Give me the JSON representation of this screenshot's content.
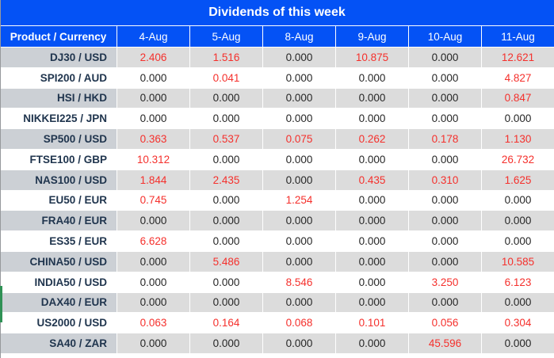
{
  "chart_data": {
    "type": "table",
    "title": "Dividends of this week",
    "columns": [
      "Product / Currency",
      "4-Aug",
      "5-Aug",
      "8-Aug",
      "9-Aug",
      "10-Aug",
      "11-Aug"
    ],
    "rows": [
      {
        "product": "DJ30 / USD",
        "values": [
          "2.406",
          "1.516",
          "0.000",
          "10.875",
          "0.000",
          "12.621"
        ]
      },
      {
        "product": "SPI200 / AUD",
        "values": [
          "0.000",
          "0.041",
          "0.000",
          "0.000",
          "0.000",
          "4.827"
        ]
      },
      {
        "product": "HSI / HKD",
        "values": [
          "0.000",
          "0.000",
          "0.000",
          "0.000",
          "0.000",
          "0.847"
        ]
      },
      {
        "product": "NIKKEI225 / JPN",
        "values": [
          "0.000",
          "0.000",
          "0.000",
          "0.000",
          "0.000",
          "0.000"
        ]
      },
      {
        "product": "SP500 / USD",
        "values": [
          "0.363",
          "0.537",
          "0.075",
          "0.262",
          "0.178",
          "1.130"
        ]
      },
      {
        "product": "FTSE100 / GBP",
        "values": [
          "10.312",
          "0.000",
          "0.000",
          "0.000",
          "0.000",
          "26.732"
        ]
      },
      {
        "product": "NAS100 / USD",
        "values": [
          "1.844",
          "2.435",
          "0.000",
          "0.435",
          "0.310",
          "1.625"
        ]
      },
      {
        "product": "EU50 / EUR",
        "values": [
          "0.745",
          "0.000",
          "1.254",
          "0.000",
          "0.000",
          "0.000"
        ]
      },
      {
        "product": "FRA40 / EUR",
        "values": [
          "0.000",
          "0.000",
          "0.000",
          "0.000",
          "0.000",
          "0.000"
        ]
      },
      {
        "product": "ES35 / EUR",
        "values": [
          "6.628",
          "0.000",
          "0.000",
          "0.000",
          "0.000",
          "0.000"
        ]
      },
      {
        "product": "CHINA50 / USD",
        "values": [
          "0.000",
          "5.486",
          "0.000",
          "0.000",
          "0.000",
          "10.585"
        ]
      },
      {
        "product": "INDIA50 / USD",
        "values": [
          "0.000",
          "0.000",
          "8.546",
          "0.000",
          "3.250",
          "6.123"
        ]
      },
      {
        "product": "DAX40 / EUR",
        "values": [
          "0.000",
          "0.000",
          "0.000",
          "0.000",
          "0.000",
          "0.000"
        ]
      },
      {
        "product": "US2000 / USD",
        "values": [
          "0.063",
          "0.164",
          "0.068",
          "0.101",
          "0.056",
          "0.304"
        ]
      },
      {
        "product": "SA40 / ZAR",
        "values": [
          "0.000",
          "0.000",
          "0.000",
          "0.000",
          "45.596",
          "0.000"
        ]
      }
    ],
    "value_color_rule": "non-zero values rendered red, zero values rendered black",
    "layout": {
      "striped": true,
      "first_data_row_shade": "gray",
      "legend": "none",
      "grid": "white 1px separators"
    }
  },
  "colors": {
    "header_blue": "#0452F5",
    "header_text": "#FFFFFF",
    "row_gray": "#DCDCDC",
    "product_col_gray": "#CCD0D5",
    "product_text_navy": "#20354E",
    "value_red": "#F5302C",
    "value_black": "#262626",
    "edge_green_artifact": "#2F9155"
  }
}
